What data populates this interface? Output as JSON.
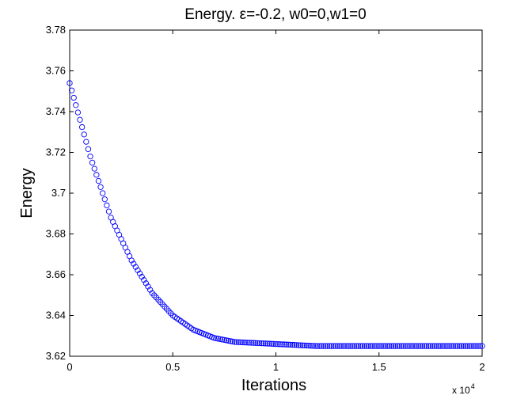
{
  "chart_data": {
    "type": "scatter",
    "title": "Energy.   ε=-0.2, w0=0,w1=0",
    "xlabel": "Iterations",
    "ylabel": "Energy",
    "x_multiplier_base": "x 10",
    "x_multiplier_exponent": "4",
    "xlim": [
      0,
      2
    ],
    "ylim": [
      3.62,
      3.78
    ],
    "x_ticks": [
      "0",
      "0.5",
      "1",
      "1.5",
      "2"
    ],
    "y_ticks": [
      "3.62",
      "3.64",
      "3.66",
      "3.68",
      "3.7",
      "3.72",
      "3.74",
      "3.76",
      "3.78"
    ],
    "grid": false,
    "marker": "circle-open",
    "marker_color": "#0000ff",
    "series": [
      {
        "x": [
          0,
          0.1,
          0.2,
          0.3,
          0.4,
          0.5,
          0.6,
          0.7,
          0.8,
          1.0,
          1.2,
          1.5,
          2.0
        ],
        "y": [
          3.754,
          3.718,
          3.688,
          3.667,
          3.651,
          3.64,
          3.633,
          3.629,
          3.627,
          3.626,
          3.625,
          3.625,
          3.625
        ]
      }
    ]
  }
}
